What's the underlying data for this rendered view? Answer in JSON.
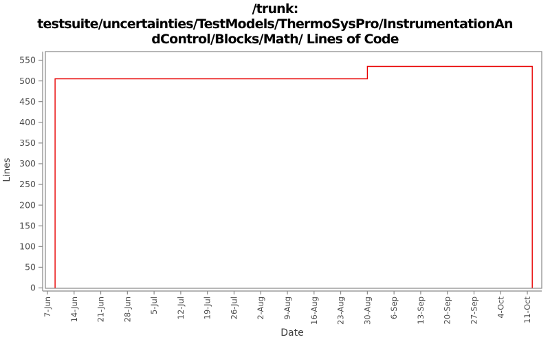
{
  "title": {
    "full": "/trunk: testsuite/uncertainties/TestModels/ThermoSysPro/InstrumentationAndControl/Blocks/Math/ Lines of Code",
    "lines": [
      "/trunk:",
      "testsuite/uncertainties/TestModels/ThermoSysPro/InstrumentationAn",
      "dControl/Blocks/Math/ Lines of Code"
    ]
  },
  "chart_data": {
    "type": "line",
    "subtype": "step",
    "title": "/trunk: testsuite/uncertainties/TestModels/ThermoSysPro/InstrumentationAndControl/Blocks/Math/ Lines of Code",
    "xlabel": "Date",
    "ylabel": "Lines",
    "x_tick_labels": [
      "7-Jun",
      "14-Jun",
      "21-Jun",
      "28-Jun",
      "5-Jul",
      "12-Jul",
      "19-Jul",
      "26-Jul",
      "2-Aug",
      "9-Aug",
      "16-Aug",
      "23-Aug",
      "30-Aug",
      "6-Sep",
      "13-Sep",
      "20-Sep",
      "27-Sep",
      "4-Oct",
      "11-Oct"
    ],
    "x_tick_interval_days": 7,
    "y_ticks": [
      0,
      50,
      100,
      150,
      200,
      250,
      300,
      350,
      400,
      450,
      500,
      550
    ],
    "ylim": [
      0,
      570
    ],
    "grid": false,
    "legend": "none",
    "series": [
      {
        "name": "Lines of Code",
        "color": "#e80000",
        "points": [
          {
            "day": 2,
            "value": 0
          },
          {
            "day": 2,
            "value": 505
          },
          {
            "day": 84,
            "value": 505
          },
          {
            "day": 84,
            "value": 535
          },
          {
            "day": 127.3,
            "value": 535
          },
          {
            "day": 127.3,
            "value": 0
          }
        ]
      }
    ],
    "colors": {
      "axis": "#878787",
      "tick_label": "#4d4d4d",
      "axis_label": "#3d3d3d",
      "title": "#000000",
      "background": "#ffffff"
    }
  }
}
